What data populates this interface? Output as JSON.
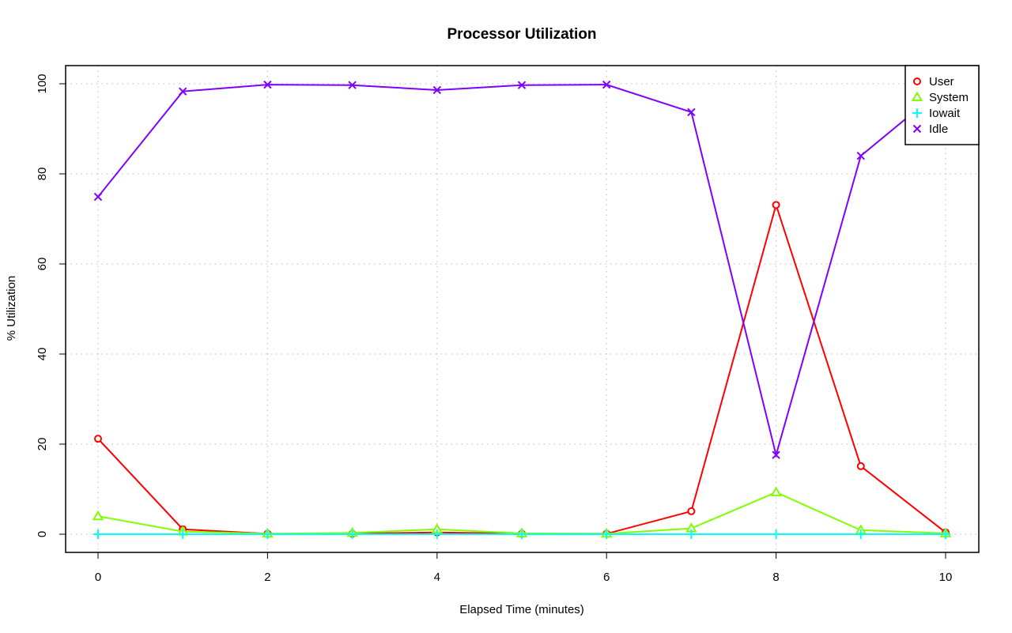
{
  "chart_data": {
    "type": "line",
    "title": "Processor Utilization",
    "xlabel": "Elapsed Time (minutes)",
    "ylabel": "% Utilization",
    "xlim": [
      0,
      10
    ],
    "ylim": [
      0,
      100
    ],
    "xticks": [
      "0",
      "2",
      "4",
      "6",
      "8",
      "10"
    ],
    "yticks": [
      "0",
      "20",
      "40",
      "60",
      "80",
      "100"
    ],
    "grid": true,
    "legend_position": "top-right",
    "x": [
      0,
      1,
      2,
      3,
      4,
      5,
      6,
      7,
      8,
      9,
      10
    ],
    "series": [
      {
        "name": "User",
        "color": "#ff0000",
        "marker": "circle",
        "values": [
          21.2,
          1.1,
          0.1,
          0.1,
          0.4,
          0.1,
          0.1,
          5.1,
          73.1,
          15.1,
          0.4
        ]
      },
      {
        "name": "System",
        "color": "#80ff00",
        "marker": "triangle",
        "values": [
          4.0,
          0.6,
          0.1,
          0.3,
          1.1,
          0.2,
          0.1,
          1.3,
          9.3,
          0.9,
          0.2
        ]
      },
      {
        "name": "Iowait",
        "color": "#00ffff",
        "marker": "plus",
        "values": [
          0,
          0,
          0,
          0,
          0,
          0,
          0,
          0,
          0,
          0,
          0
        ]
      },
      {
        "name": "Idle",
        "color": "#8000ff",
        "marker": "cross",
        "values": [
          74.9,
          98.3,
          99.8,
          99.7,
          98.6,
          99.7,
          99.8,
          93.7,
          17.6,
          84.0,
          99.5
        ]
      }
    ]
  }
}
